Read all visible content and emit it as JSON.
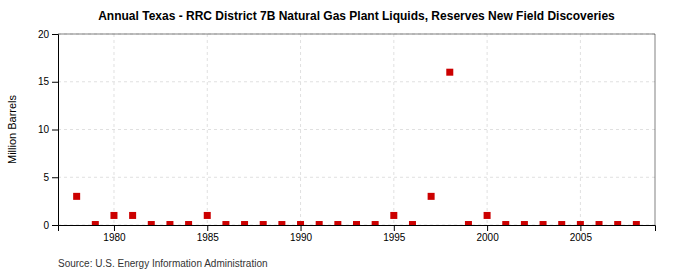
{
  "chart_data": {
    "type": "scatter",
    "title": "Annual Texas - RRC District 7B Natural Gas Plant Liquids, Reserves New Field Discoveries",
    "ylabel": "Million Barrels",
    "source": "Source: U.S. Energy Information Administration",
    "x": [
      1978,
      1979,
      1980,
      1981,
      1982,
      1983,
      1984,
      1985,
      1986,
      1987,
      1988,
      1989,
      1990,
      1991,
      1992,
      1993,
      1994,
      1995,
      1996,
      1997,
      1998,
      1999,
      2000,
      2001,
      2002,
      2003,
      2004,
      2005,
      2006,
      2007,
      2008
    ],
    "values": [
      3.0,
      0.05,
      1.0,
      1.0,
      0.05,
      0.05,
      0.05,
      1.0,
      0.05,
      0.05,
      0.05,
      0.05,
      0.05,
      0.05,
      0.05,
      0.05,
      0.05,
      1.0,
      0.05,
      3.0,
      16.0,
      0.05,
      1.0,
      0.05,
      0.05,
      0.05,
      0.05,
      0.05,
      0.05,
      0.05,
      0.05
    ],
    "color": "#cc0000",
    "marker": "square",
    "xlim": [
      1977,
      2009
    ],
    "xticks": [
      1980,
      1985,
      1990,
      1995,
      2000,
      2005
    ],
    "ylim": [
      0,
      20
    ],
    "yticks": [
      0,
      5,
      10,
      15,
      20
    ],
    "grid": true
  }
}
